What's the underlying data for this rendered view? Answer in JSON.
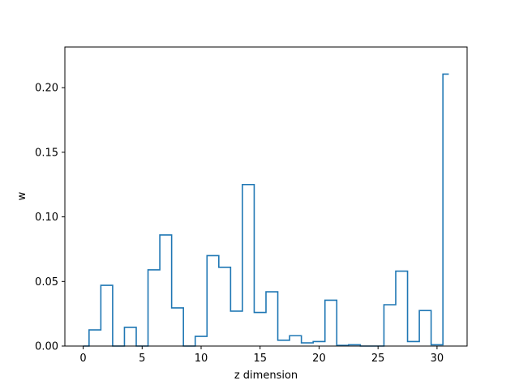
{
  "chart_data": {
    "type": "step",
    "title": "",
    "xlabel": "z dimension",
    "ylabel": "w",
    "xlim": [
      -1.55,
      32.55
    ],
    "ylim": [
      0.0,
      0.2315
    ],
    "xticks": [
      0,
      5,
      10,
      15,
      20,
      25,
      30
    ],
    "xtick_labels": [
      "0",
      "5",
      "10",
      "15",
      "20",
      "25",
      "30"
    ],
    "yticks": [
      0.0,
      0.05,
      0.1,
      0.15,
      0.2
    ],
    "ytick_labels": [
      "0.00",
      "0.05",
      "0.10",
      "0.15",
      "0.20"
    ],
    "grid": false,
    "step_where": "mid",
    "line_color": "#1f77b4",
    "x": [
      0,
      1,
      2,
      3,
      4,
      5,
      6,
      7,
      8,
      9,
      10,
      11,
      12,
      13,
      14,
      15,
      16,
      17,
      18,
      19,
      20,
      21,
      22,
      23,
      24,
      25,
      26,
      27,
      28,
      29,
      30,
      31
    ],
    "values": [
      0.0,
      0.0125,
      0.047,
      0.0,
      0.0145,
      0.0,
      0.059,
      0.086,
      0.0295,
      0.0,
      0.0075,
      0.07,
      0.061,
      0.027,
      0.125,
      0.026,
      0.042,
      0.0045,
      0.008,
      0.0025,
      0.0035,
      0.0355,
      0.0005,
      0.001,
      0.0,
      0.0,
      0.032,
      0.058,
      0.0035,
      0.0275,
      0.001,
      0.2105
    ]
  }
}
